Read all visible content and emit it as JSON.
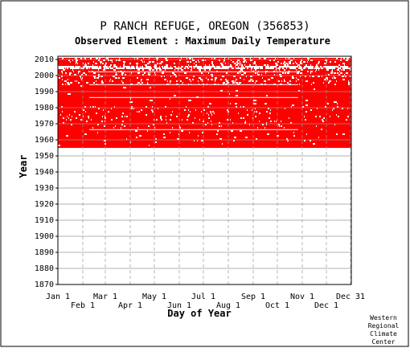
{
  "chart_data": {
    "type": "heatmap",
    "title": "P RANCH REFUGE, OREGON   (356853)",
    "subtitle": "Observed Element : Maximum Daily Temperature",
    "xlabel": "Day of Year",
    "ylabel": "Year",
    "credit": [
      "Western",
      "Regional",
      "Climate",
      "Center"
    ],
    "x_range": [
      1,
      366
    ],
    "y_range": [
      1870,
      2012
    ],
    "grid": true,
    "x_ticks_upper": [
      {
        "label": "Jan 1",
        "day": 1
      },
      {
        "label": "Mar 1",
        "day": 60
      },
      {
        "label": "May 1",
        "day": 121
      },
      {
        "label": "Jul 1",
        "day": 182
      },
      {
        "label": "Sep 1",
        "day": 244
      },
      {
        "label": "Nov 1",
        "day": 305
      },
      {
        "label": "Dec 31",
        "day": 365
      }
    ],
    "x_ticks_lower": [
      {
        "label": "Feb 1",
        "day": 32
      },
      {
        "label": "Apr 1",
        "day": 91
      },
      {
        "label": "Jun 1",
        "day": 152
      },
      {
        "label": "Aug 1",
        "day": 213
      },
      {
        "label": "Oct 1",
        "day": 274
      },
      {
        "label": "Dec 1",
        "day": 335
      }
    ],
    "y_ticks": [
      1870,
      1880,
      1890,
      1900,
      1910,
      1920,
      1930,
      1940,
      1950,
      1960,
      1970,
      1980,
      1990,
      2000,
      2010
    ],
    "colors": {
      "observed": "#ff0000",
      "missing": "#ffffff",
      "grid": "#999999"
    },
    "legend": "none",
    "series": [
      {
        "values": [
          {
            "year_start": 1955,
            "year_end": 1993,
            "day_start": 1,
            "day_end": 366,
            "status": "observed"
          },
          {
            "year_start": 1994,
            "year_end": 2003,
            "day_start": 1,
            "day_end": 366,
            "status": "mostly observed"
          },
          {
            "year_start": 2004,
            "year_end": 2005,
            "day_start": 1,
            "day_end": 366,
            "status": "mostly missing"
          },
          {
            "year_start": 2006,
            "year_end": 2010,
            "day_start": 1,
            "day_end": 366,
            "status": "partially observed"
          }
        ]
      }
    ]
  }
}
